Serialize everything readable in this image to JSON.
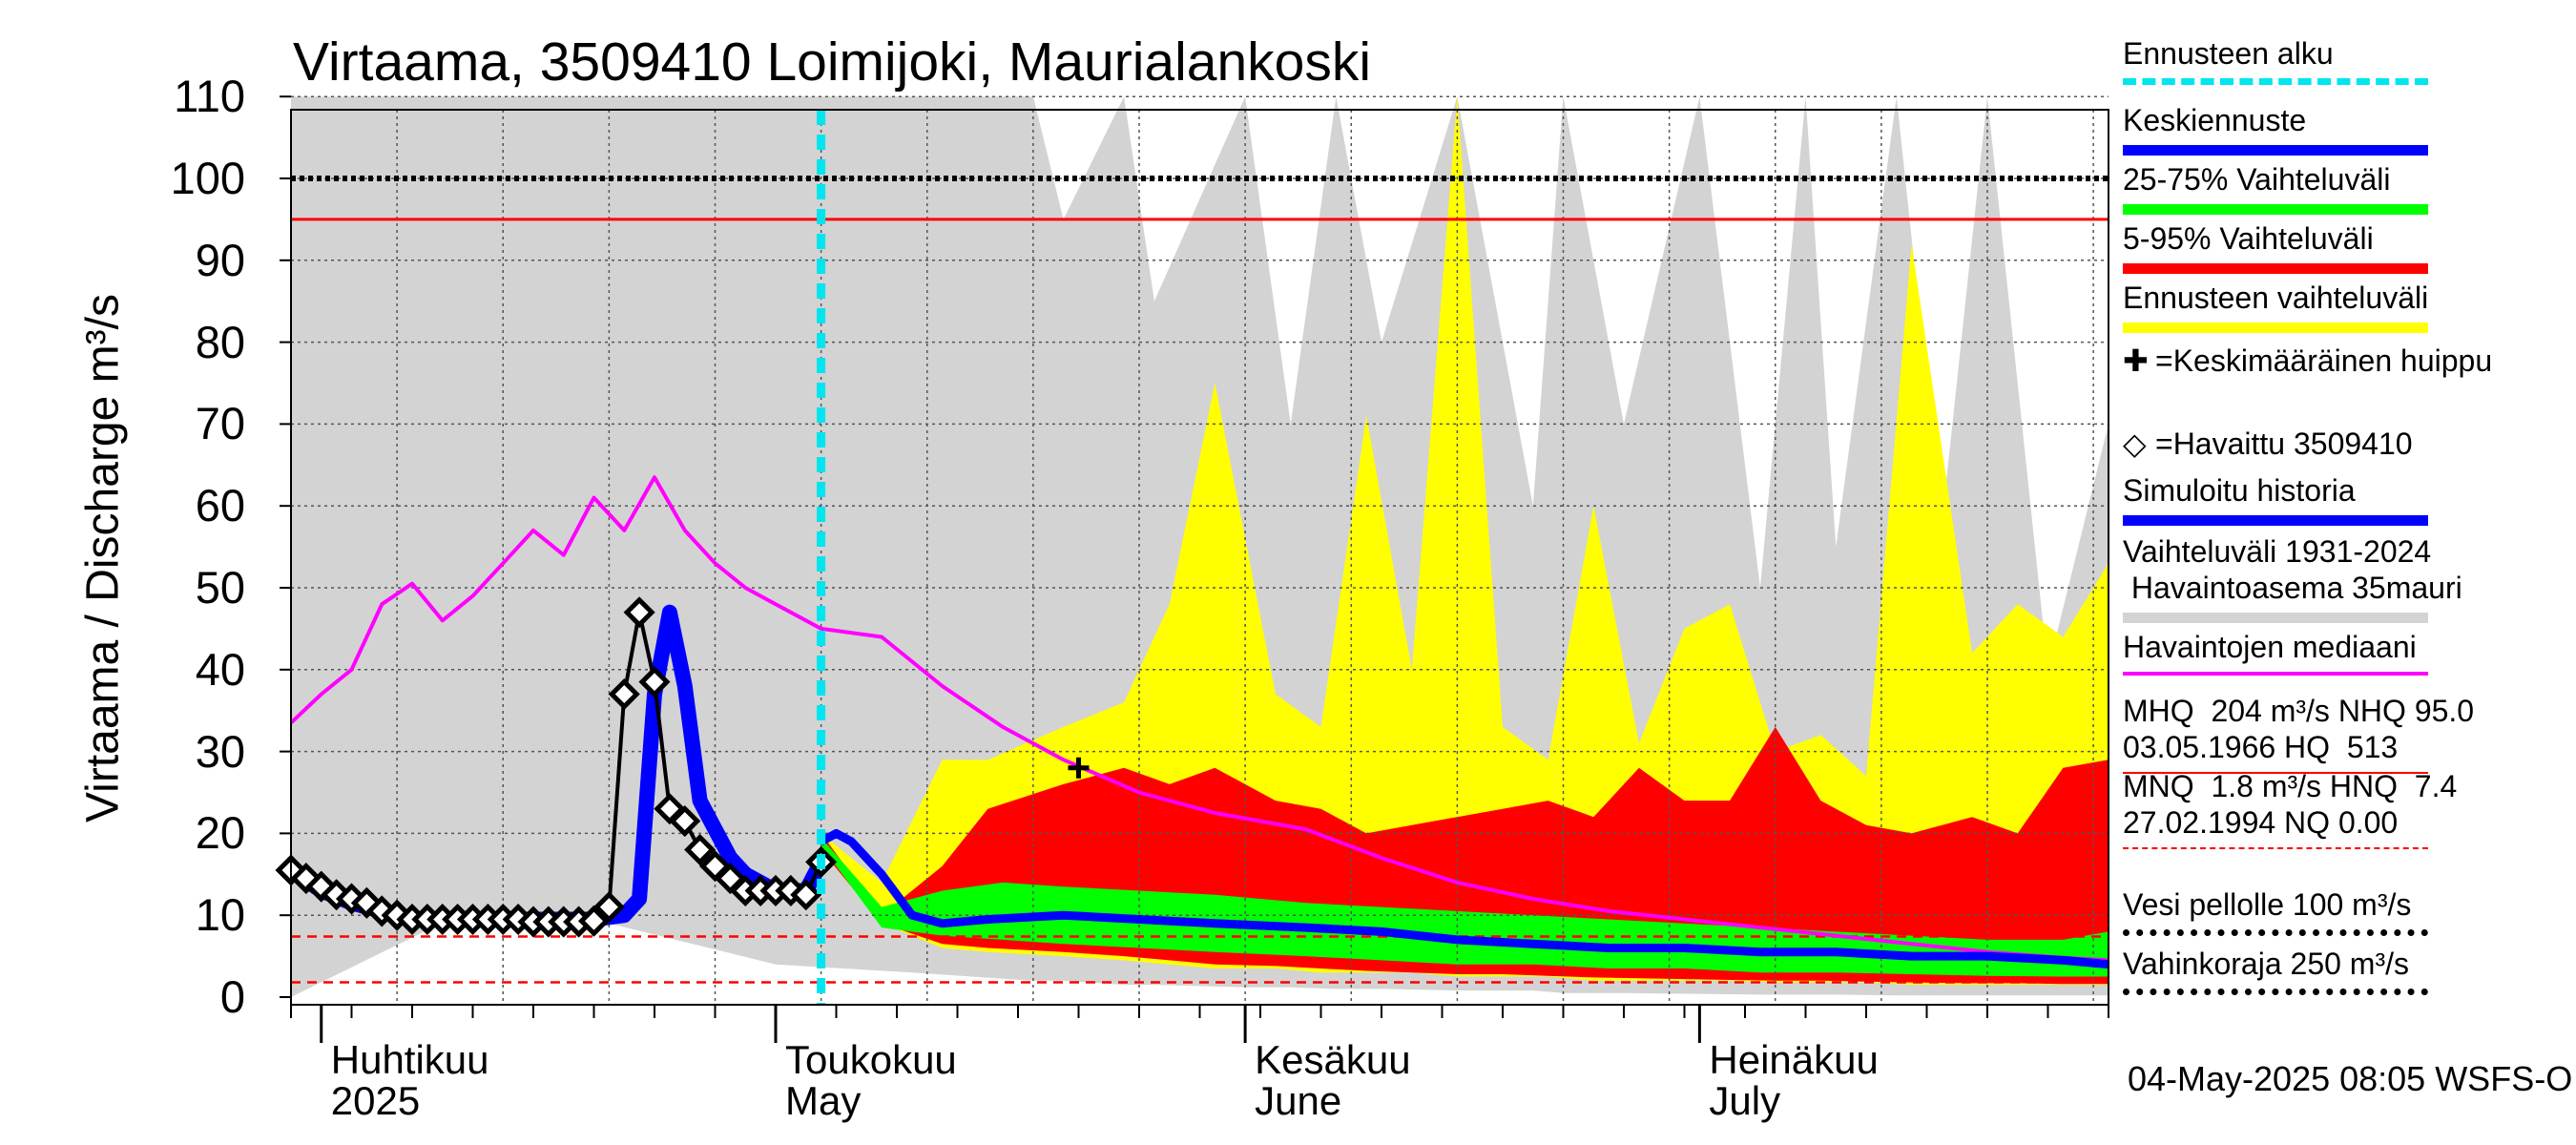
{
  "chart_data": {
    "type": "area",
    "title": "Virtaama, 3509410 Loimijoki, Maurialankoski",
    "ylabel": "Virtaama / Discharge    m³/s",
    "xlabel": "",
    "ylim": [
      0,
      110
    ],
    "yticks": [
      "0",
      "10",
      "20",
      "30",
      "40",
      "50",
      "60",
      "70",
      "80",
      "90",
      "100",
      "110"
    ],
    "x_axis_labels": [
      {
        "fi": "Huhtikuu",
        "en": "2025",
        "date": "2025-04-01"
      },
      {
        "fi": "Toukokuu",
        "en": "May",
        "date": "2025-05-01"
      },
      {
        "fi": "Kesäkuu",
        "en": "June",
        "date": "2025-06-01"
      },
      {
        "fi": "Heinäkuu",
        "en": "July",
        "date": "2025-07-01"
      }
    ],
    "date_range": [
      "2025-03-30",
      "2025-07-28"
    ],
    "grid": true,
    "legend_position": "right",
    "reference_lines": [
      {
        "label": "Vesi pellolle 100 m³/s",
        "y": 100,
        "color": "#000000",
        "style": "dotted"
      },
      {
        "label": "NHQ 95.0",
        "y": 95,
        "color": "#ff0000",
        "style": "solid"
      },
      {
        "label": "HNQ 7.4",
        "y": 7.4,
        "color": "#ff0000",
        "style": "dashed"
      },
      {
        "label": "MNQ 1.8",
        "y": 1.8,
        "color": "#ff0000",
        "style": "dashed"
      }
    ],
    "forecast_start": "2025-05-04",
    "mean_peak_marker": {
      "date": "2025-05-21",
      "y": 28
    },
    "series": [
      {
        "name": "Vaihteluväli 1931-2024 Havaintoasema 35mauri",
        "color": "#d3d3d3",
        "dates": [
          "2025-03-30",
          "2025-04-10",
          "2025-04-20",
          "2025-05-01",
          "2025-05-10",
          "2025-05-18",
          "2025-05-20",
          "2025-05-24",
          "2025-05-26",
          "2025-06-01",
          "2025-06-04",
          "2025-06-07",
          "2025-06-10",
          "2025-06-15",
          "2025-06-20",
          "2025-06-22",
          "2025-06-26",
          "2025-07-01",
          "2025-07-05",
          "2025-07-08",
          "2025-07-10",
          "2025-07-14",
          "2025-07-17",
          "2025-07-20",
          "2025-07-24",
          "2025-07-28"
        ],
        "upper": [
          110,
          110,
          110,
          110,
          110,
          110,
          95,
          110,
          85,
          110,
          70,
          110,
          80,
          110,
          60,
          110,
          70,
          110,
          50,
          110,
          55,
          110,
          58,
          110,
          40,
          70
        ],
        "lower": [
          0,
          10,
          9,
          4,
          3,
          2,
          2,
          1.5,
          1.5,
          1.2,
          1.2,
          1,
          1,
          0.8,
          0.8,
          0.5,
          0.5,
          0.4,
          0.3,
          0.3,
          0.3,
          0.2,
          0.2,
          0.2,
          0.2,
          0.2
        ]
      },
      {
        "name": "Ennusteen vaihteluväli",
        "color": "#ffff00",
        "dates": [
          "2025-05-04",
          "2025-05-08",
          "2025-05-12",
          "2025-05-15",
          "2025-05-20",
          "2025-05-24",
          "2025-05-27",
          "2025-05-30",
          "2025-06-03",
          "2025-06-06",
          "2025-06-09",
          "2025-06-12",
          "2025-06-15",
          "2025-06-18",
          "2025-06-21",
          "2025-06-24",
          "2025-06-27",
          "2025-06-30",
          "2025-07-03",
          "2025-07-06",
          "2025-07-09",
          "2025-07-12",
          "2025-07-15",
          "2025-07-19",
          "2025-07-22",
          "2025-07-25",
          "2025-07-28"
        ],
        "upper": [
          20,
          14,
          29,
          29,
          33,
          36,
          48,
          75,
          37,
          33,
          71,
          40,
          110,
          33,
          29,
          60,
          31,
          45,
          48,
          30,
          32,
          27,
          92,
          42,
          48,
          44,
          53
        ],
        "lower": [
          18,
          9,
          6,
          5.5,
          5,
          4.5,
          4,
          3.5,
          3.5,
          3,
          3,
          3,
          2.5,
          2.5,
          2.5,
          2,
          2,
          2,
          2,
          1.8,
          1.8,
          1.8,
          1.5,
          1.5,
          1.5,
          1.5,
          1.5
        ]
      },
      {
        "name": "5-95% Vaihteluväli",
        "color": "#ff0000",
        "dates": [
          "2025-05-04",
          "2025-05-08",
          "2025-05-12",
          "2025-05-15",
          "2025-05-20",
          "2025-05-24",
          "2025-05-27",
          "2025-05-30",
          "2025-06-03",
          "2025-06-06",
          "2025-06-09",
          "2025-06-12",
          "2025-06-15",
          "2025-06-18",
          "2025-06-21",
          "2025-06-24",
          "2025-06-27",
          "2025-06-30",
          "2025-07-03",
          "2025-07-06",
          "2025-07-09",
          "2025-07-12",
          "2025-07-15",
          "2025-07-19",
          "2025-07-22",
          "2025-07-25",
          "2025-07-28"
        ],
        "upper": [
          20,
          10,
          16,
          23,
          26,
          28,
          26,
          28,
          24,
          23,
          20,
          21,
          22,
          23,
          24,
          22,
          28,
          24,
          24,
          33,
          24,
          21,
          20,
          22,
          20,
          28,
          29
        ],
        "lower": [
          18,
          9,
          6.5,
          6,
          5.5,
          5,
          4.5,
          4,
          3.8,
          3.5,
          3.2,
          3,
          2.8,
          2.8,
          2.6,
          2.4,
          2.3,
          2.2,
          2.1,
          2,
          2,
          1.9,
          1.8,
          1.7,
          1.7,
          1.6,
          1.6
        ]
      },
      {
        "name": "25-75% Vaihteluväli",
        "color": "#00ff00",
        "dates": [
          "2025-05-04",
          "2025-05-08",
          "2025-05-12",
          "2025-05-16",
          "2025-05-20",
          "2025-05-25",
          "2025-05-30",
          "2025-06-05",
          "2025-06-10",
          "2025-06-15",
          "2025-06-20",
          "2025-06-25",
          "2025-06-30",
          "2025-07-05",
          "2025-07-10",
          "2025-07-15",
          "2025-07-20",
          "2025-07-25",
          "2025-07-28"
        ],
        "upper": [
          19.5,
          11,
          13,
          14,
          13.5,
          13,
          12.5,
          11.5,
          11,
          10.5,
          10,
          9.5,
          9,
          8.5,
          8,
          7.5,
          7,
          7,
          8
        ],
        "lower": [
          18.5,
          8.5,
          7.5,
          7,
          6.5,
          6,
          5.5,
          5,
          4.5,
          4,
          4,
          3.5,
          3.5,
          3,
          3,
          2.8,
          2.6,
          2.5,
          2.5
        ]
      },
      {
        "name": "Havaintojen mediaani",
        "color": "#ff00ff",
        "dates": [
          "2025-03-30",
          "2025-04-01",
          "2025-04-03",
          "2025-04-05",
          "2025-04-07",
          "2025-04-09",
          "2025-04-11",
          "2025-04-13",
          "2025-04-15",
          "2025-04-17",
          "2025-04-19",
          "2025-04-21",
          "2025-04-23",
          "2025-04-25",
          "2025-04-27",
          "2025-04-29",
          "2025-05-01",
          "2025-05-04",
          "2025-05-08",
          "2025-05-12",
          "2025-05-16",
          "2025-05-20",
          "2025-05-25",
          "2025-05-30",
          "2025-06-05",
          "2025-06-10",
          "2025-06-15",
          "2025-06-20",
          "2025-06-25",
          "2025-06-30",
          "2025-07-05",
          "2025-07-10",
          "2025-07-15",
          "2025-07-20",
          "2025-07-25",
          "2025-07-28"
        ],
        "values": [
          33.5,
          37,
          40,
          48,
          50.5,
          46,
          49,
          53,
          57,
          54,
          61,
          57,
          63.5,
          57,
          53,
          50,
          48,
          45,
          44,
          38,
          33,
          29,
          25,
          22.5,
          20.5,
          17,
          14,
          12,
          10.5,
          9.5,
          8.5,
          7.5,
          6.5,
          5.5,
          4.8,
          4.5
        ]
      },
      {
        "name": "Simuloitu historia",
        "color": "#0000ff",
        "dates": [
          "2025-03-30",
          "2025-04-01",
          "2025-04-03",
          "2025-04-05",
          "2025-04-07",
          "2025-04-10",
          "2025-04-13",
          "2025-04-16",
          "2025-04-19",
          "2025-04-21",
          "2025-04-22",
          "2025-04-23",
          "2025-04-24",
          "2025-04-25",
          "2025-04-26",
          "2025-04-27",
          "2025-04-28",
          "2025-04-29",
          "2025-05-01",
          "2025-05-03",
          "2025-05-04"
        ],
        "values": [
          15.5,
          13,
          11.5,
          10.5,
          9.5,
          9.5,
          9.5,
          9.5,
          9.5,
          10,
          12,
          37,
          47,
          38,
          24,
          20.5,
          17,
          15,
          13,
          13,
          16.5
        ]
      },
      {
        "name": "Keskiennuste",
        "color": "#0000ff",
        "dates": [
          "2025-05-04",
          "2025-05-05",
          "2025-05-06",
          "2025-05-08",
          "2025-05-10",
          "2025-05-12",
          "2025-05-15",
          "2025-05-20",
          "2025-05-25",
          "2025-05-30",
          "2025-06-05",
          "2025-06-10",
          "2025-06-15",
          "2025-06-20",
          "2025-06-25",
          "2025-06-30",
          "2025-07-05",
          "2025-07-10",
          "2025-07-15",
          "2025-07-20",
          "2025-07-25",
          "2025-07-28"
        ],
        "values": [
          19,
          20,
          19,
          15,
          10,
          9,
          9.5,
          10,
          9.5,
          9,
          8.5,
          8,
          7,
          6.5,
          6,
          6,
          5.5,
          5.5,
          5,
          5,
          4.5,
          4
        ]
      },
      {
        "name": "Havaittu 3509410",
        "color": "#000000",
        "marker": "diamond",
        "dates": [
          "2025-03-30",
          "2025-03-31",
          "2025-04-01",
          "2025-04-02",
          "2025-04-03",
          "2025-04-04",
          "2025-04-05",
          "2025-04-06",
          "2025-04-07",
          "2025-04-08",
          "2025-04-09",
          "2025-04-10",
          "2025-04-11",
          "2025-04-12",
          "2025-04-13",
          "2025-04-14",
          "2025-04-15",
          "2025-04-16",
          "2025-04-17",
          "2025-04-18",
          "2025-04-19",
          "2025-04-20",
          "2025-04-21",
          "2025-04-22",
          "2025-04-23",
          "2025-04-24",
          "2025-04-25",
          "2025-04-26",
          "2025-04-27",
          "2025-04-28",
          "2025-04-29",
          "2025-04-30",
          "2025-05-01",
          "2025-05-02",
          "2025-05-03",
          "2025-05-04"
        ],
        "values": [
          15.5,
          14.5,
          13.5,
          12.5,
          12,
          11.5,
          10.5,
          10,
          9.5,
          9.5,
          9.5,
          9.5,
          9.5,
          9.5,
          9.5,
          9.5,
          9.2,
          9.2,
          9.2,
          9.2,
          9.3,
          11,
          37,
          47,
          38.5,
          23,
          21.5,
          18,
          16,
          14.5,
          13,
          13,
          13,
          13,
          12.5,
          16.5
        ]
      }
    ]
  },
  "legend": [
    {
      "text": "Ennusteen alku",
      "color": "#00e5ee",
      "style": "dashed"
    },
    {
      "text": "Keskiennuste",
      "color": "#0000ff",
      "style": "thick"
    },
    {
      "text": "25-75% Vaihteluväli",
      "color": "#00ff00",
      "style": "thick"
    },
    {
      "text": "5-95% Vaihteluväli",
      "color": "#ff0000",
      "style": "thick"
    },
    {
      "text": "Ennusteen vaihteluväli",
      "color": "#ffff00",
      "style": "thick"
    },
    {
      "text": "=Keskimääräinen huippu",
      "color": "#000000",
      "style": "none",
      "glyph": "✚"
    },
    {
      "text": "=Havaittu 3509410",
      "color": "#000000",
      "style": "none",
      "glyph": "◇"
    },
    {
      "text": "Simuloitu historia",
      "color": "#0000ff",
      "style": "thick"
    },
    {
      "text": "Vaihteluväli 1931-2024\n Havaintoasema 35mauri",
      "color": "#d3d3d3",
      "style": "thick"
    },
    {
      "text": "Havaintojen mediaani",
      "color": "#ff00ff",
      "style": "medium"
    },
    {
      "text": "MHQ  204 m³/s NHQ 95.0\n03.05.1966 HQ  513",
      "color": "#ff0000",
      "style": "thin"
    },
    {
      "text": "MNQ  1.8 m³/s HNQ  7.4\n27.02.1994 NQ 0.00",
      "color": "#ff0000",
      "style": "dashed-thin"
    },
    {
      "text": "Vesi pellolle 100 m³/s",
      "color": "#000000",
      "style": "dotted"
    },
    {
      "text": "Vahinkoraja 250 m³/s",
      "color": "#000000",
      "style": "dotted"
    }
  ],
  "footer": {
    "timestamp": "04-May-2025 08:05 WSFS-O"
  }
}
